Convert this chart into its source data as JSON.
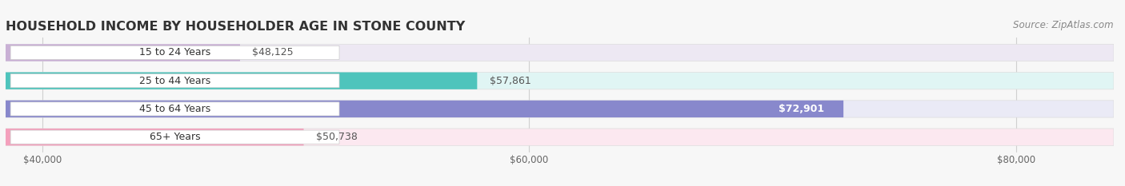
{
  "title": "HOUSEHOLD INCOME BY HOUSEHOLDER AGE IN STONE COUNTY",
  "source": "Source: ZipAtlas.com",
  "categories": [
    "15 to 24 Years",
    "25 to 44 Years",
    "45 to 64 Years",
    "65+ Years"
  ],
  "values": [
    48125,
    57861,
    72901,
    50738
  ],
  "labels": [
    "$48,125",
    "$57,861",
    "$72,901",
    "$50,738"
  ],
  "bar_colors": [
    "#c9b0d5",
    "#4ec4bc",
    "#8888cc",
    "#f4a0bc"
  ],
  "bar_bg_colors": [
    "#ede8f3",
    "#e0f5f4",
    "#eaeaf6",
    "#fce8f0"
  ],
  "label_in_bar": [
    false,
    false,
    true,
    false
  ],
  "xlim_min": 38500,
  "xlim_max": 84000,
  "xticks": [
    40000,
    60000,
    80000
  ],
  "xticklabels": [
    "$40,000",
    "$60,000",
    "$80,000"
  ],
  "title_fontsize": 11.5,
  "label_fontsize": 9,
  "tick_fontsize": 8.5,
  "source_fontsize": 8.5,
  "background_color": "#f7f7f7"
}
